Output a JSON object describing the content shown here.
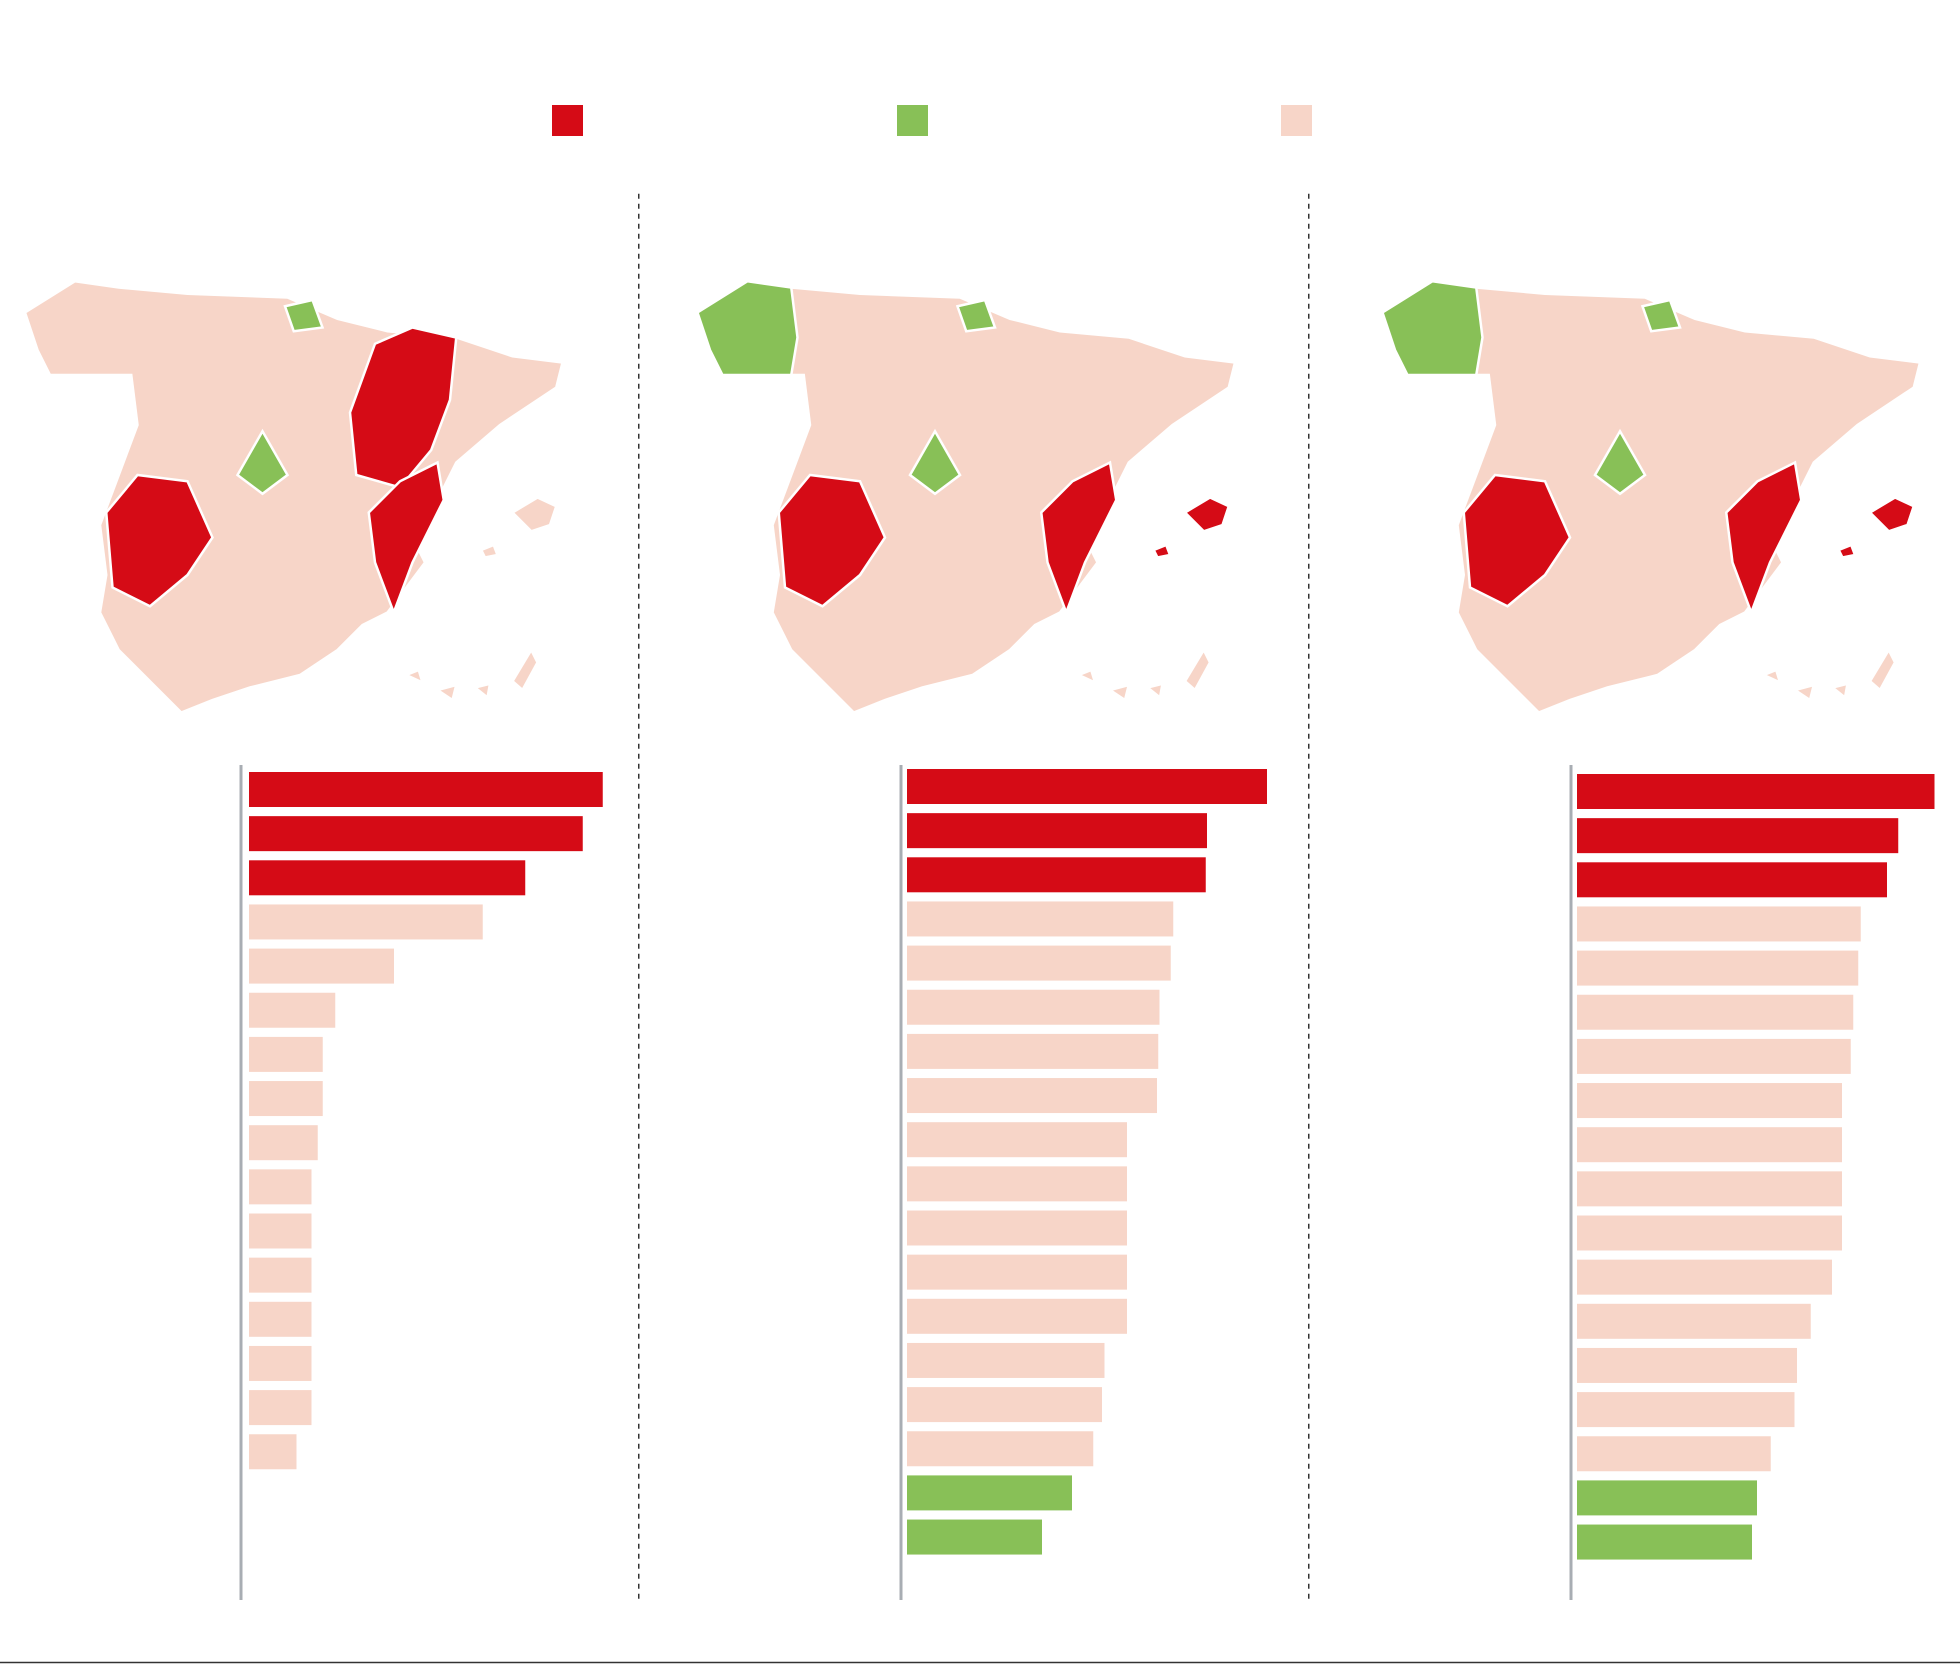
{
  "chart_data": [
    {
      "type": "bar",
      "orientation": "horizontal",
      "xlim": [
        0,
        300
      ],
      "values": [
        283,
        267,
        221,
        187,
        116,
        69,
        59,
        59,
        55,
        50,
        50,
        50,
        50,
        50,
        50,
        38
      ],
      "colors": [
        "#d50b16",
        "#d50b16",
        "#d50b16",
        "#f7d5c8",
        "#f7d5c8",
        "#f7d5c8",
        "#f7d5c8",
        "#f7d5c8",
        "#f7d5c8",
        "#f7d5c8",
        "#f7d5c8",
        "#f7d5c8",
        "#f7d5c8",
        "#f7d5c8",
        "#f7d5c8",
        "#f7d5c8"
      ],
      "legend_colors": [
        "#d50b16",
        "#88c057",
        "#f7d5c8"
      ]
    },
    {
      "type": "bar",
      "orientation": "horizontal",
      "xlim": [
        0,
        300
      ],
      "values": [
        288,
        240,
        239,
        213,
        211,
        202,
        201,
        200,
        176,
        176,
        176,
        176,
        176,
        158,
        156,
        149,
        132,
        108
      ],
      "colors": [
        "#d50b16",
        "#d50b16",
        "#d50b16",
        "#f7d5c8",
        "#f7d5c8",
        "#f7d5c8",
        "#f7d5c8",
        "#f7d5c8",
        "#f7d5c8",
        "#f7d5c8",
        "#f7d5c8",
        "#f7d5c8",
        "#f7d5c8",
        "#f7d5c8",
        "#f7d5c8",
        "#f7d5c8",
        "#88c057",
        "#88c057"
      ]
    },
    {
      "type": "bar",
      "orientation": "horizontal",
      "xlim": [
        0,
        300
      ],
      "values": [
        286,
        257,
        248,
        227,
        225,
        221,
        219,
        212,
        212,
        212,
        212,
        204,
        187,
        176,
        174,
        155,
        144,
        140
      ],
      "colors": [
        "#d50b16",
        "#d50b16",
        "#d50b16",
        "#f7d5c8",
        "#f7d5c8",
        "#f7d5c8",
        "#f7d5c8",
        "#f7d5c8",
        "#f7d5c8",
        "#f7d5c8",
        "#f7d5c8",
        "#f7d5c8",
        "#f7d5c8",
        "#f7d5c8",
        "#f7d5c8",
        "#f7d5c8",
        "#88c057",
        "#88c057"
      ]
    }
  ]
}
